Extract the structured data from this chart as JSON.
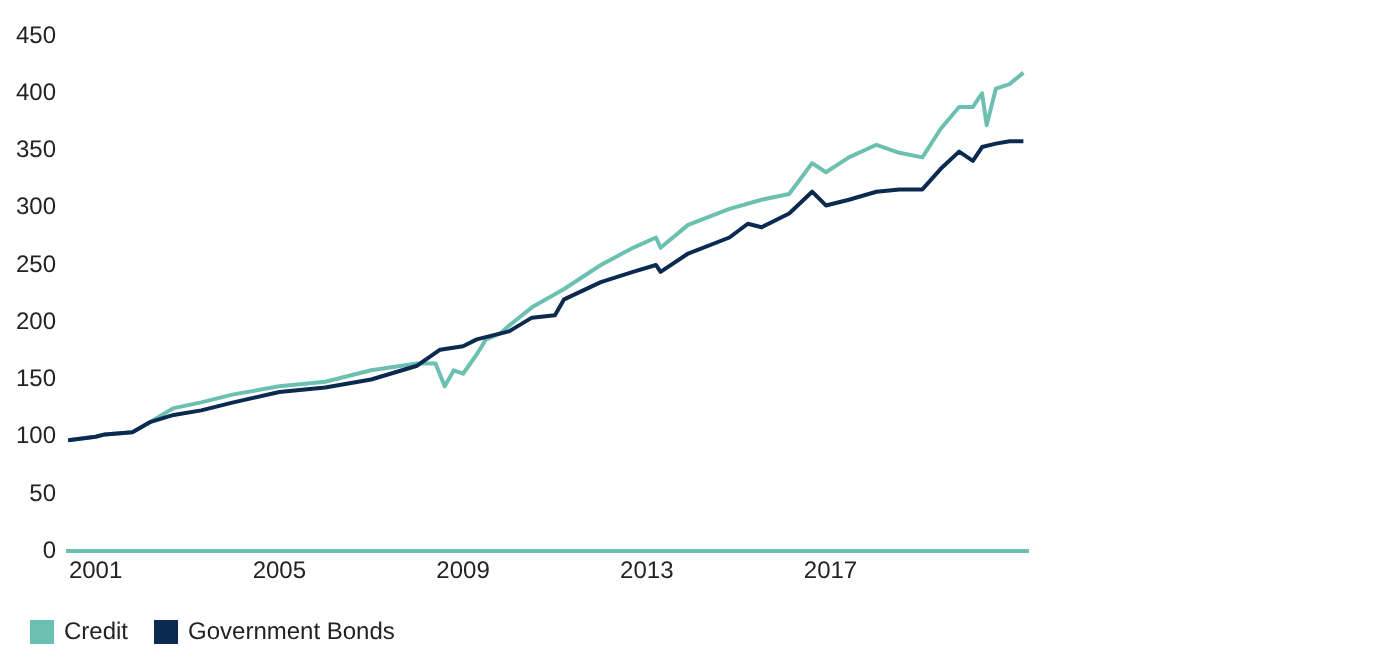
{
  "chart_data": {
    "type": "line",
    "xlim": [
      2000.4,
      2021.3
    ],
    "xticks": [
      2001,
      2005,
      2009,
      2013,
      2017
    ],
    "ylim": [
      0,
      450
    ],
    "yticks": [
      0,
      50,
      100,
      150,
      200,
      250,
      300,
      350,
      400,
      450
    ],
    "grid": false,
    "legend": "bottom left",
    "marker": "none",
    "line_style": "solid",
    "series": [
      {
        "name": "Credit",
        "color": "#6cc0b1",
        "x": [
          2000.4,
          2001.0,
          2001.2,
          2001.8,
          2002.2,
          2002.7,
          2003.3,
          2004.0,
          2005.0,
          2006.0,
          2007.0,
          2008.0,
          2008.4,
          2008.6,
          2008.8,
          2009.0,
          2009.3,
          2009.5,
          2009.8,
          2010.0,
          2010.5,
          2011.2,
          2012.0,
          2012.7,
          2013.2,
          2013.3,
          2013.9,
          2014.8,
          2015.5,
          2016.1,
          2016.6,
          2016.9,
          2017.4,
          2018.0,
          2018.5,
          2019.0,
          2019.4,
          2019.8,
          2020.1,
          2020.3,
          2020.4,
          2020.6,
          2020.9,
          2021.2
        ],
        "values": [
          97,
          100,
          102,
          104,
          113,
          125,
          130,
          137,
          144,
          148,
          158,
          164,
          164,
          144,
          158,
          155,
          172,
          185,
          190,
          197,
          213,
          229,
          250,
          265,
          274,
          265,
          285,
          299,
          307,
          312,
          339,
          331,
          344,
          355,
          348,
          344,
          369,
          388,
          388,
          400,
          372,
          404,
          408,
          418
        ]
      },
      {
        "name": "Government Bonds",
        "color": "#0b2a4f",
        "x": [
          2000.4,
          2001.0,
          2001.2,
          2001.8,
          2002.2,
          2002.7,
          2003.3,
          2004.0,
          2005.0,
          2006.0,
          2007.0,
          2008.0,
          2008.5,
          2009.0,
          2009.3,
          2009.8,
          2010.0,
          2010.5,
          2011.0,
          2011.2,
          2012.0,
          2012.7,
          2013.2,
          2013.3,
          2013.9,
          2014.8,
          2015.2,
          2015.5,
          2016.1,
          2016.6,
          2016.9,
          2017.4,
          2018.0,
          2018.5,
          2019.0,
          2019.4,
          2019.8,
          2020.1,
          2020.3,
          2020.6,
          2020.9,
          2021.2
        ],
        "values": [
          97,
          100,
          102,
          104,
          113,
          119,
          123,
          130,
          139,
          143,
          150,
          162,
          176,
          179,
          185,
          190,
          192,
          204,
          206,
          220,
          235,
          244,
          250,
          244,
          260,
          274,
          286,
          283,
          295,
          314,
          302,
          307,
          314,
          316,
          316,
          334,
          349,
          341,
          353,
          356,
          358,
          358
        ]
      }
    ]
  }
}
